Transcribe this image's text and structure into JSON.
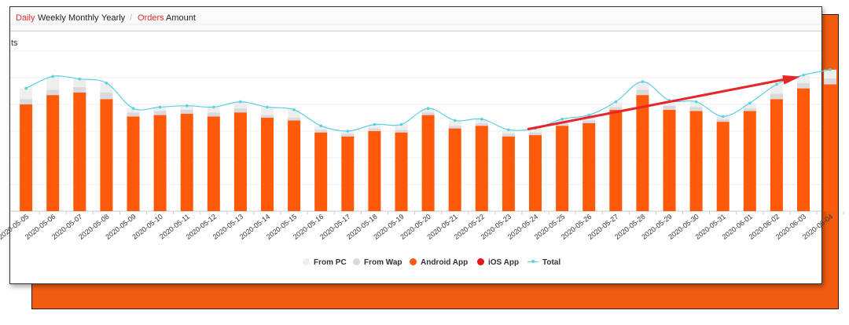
{
  "toolbar": {
    "period_tabs": [
      "Daily",
      "Weekly",
      "Monthly",
      "Yearly"
    ],
    "separator": "/",
    "metric_tabs": [
      "Orders",
      "Amount"
    ],
    "active_period": "Daily",
    "active_metric": "Orders"
  },
  "cut_title": "ts",
  "colors": {
    "from_pc": "#eeeeee",
    "from_wap": "#d9d9de",
    "android": "#ff5a0a",
    "ios": "#e8141c",
    "total": "#5ad0e2",
    "arrow": "#e8252a"
  },
  "chart_data": {
    "type": "bar",
    "stacked": true,
    "categories": [
      "2020-05-05",
      "2020-05-06",
      "2020-05-07",
      "2020-05-08",
      "2020-05-09",
      "2020-05-10",
      "2020-05-11",
      "2020-05-12",
      "2020-05-13",
      "2020-05-14",
      "2020-05-15",
      "2020-05-16",
      "2020-05-17",
      "2020-05-18",
      "2020-05-19",
      "2020-05-20",
      "2020-05-21",
      "2020-05-22",
      "2020-05-23",
      "2020-05-24",
      "2020-05-25",
      "2020-05-26",
      "2020-05-27",
      "2020-05-28",
      "2020-05-29",
      "2020-05-30",
      "2020-05-31",
      "2020-06-01",
      "2020-06-02",
      "2020-06-03",
      "2020-06-04"
    ],
    "series": [
      {
        "name": "From PC",
        "values": [
          8,
          10,
          6,
          7,
          3,
          3,
          3,
          4,
          5,
          6,
          6,
          3,
          2,
          3,
          4,
          3,
          4,
          3,
          3,
          3,
          3,
          4,
          4,
          6,
          4,
          4,
          2,
          4,
          7,
          6,
          7
        ]
      },
      {
        "name": "From Wap",
        "values": [
          4,
          4,
          4,
          5,
          3,
          3,
          3,
          3,
          3,
          2,
          2,
          2,
          2,
          2,
          2,
          2,
          2,
          2,
          2,
          2,
          2,
          2,
          2,
          4,
          3,
          3,
          2,
          2,
          4,
          4,
          4
        ]
      },
      {
        "name": "Android App",
        "values": [
          80,
          87,
          89,
          84,
          71,
          72,
          73,
          71,
          74,
          70,
          68,
          59,
          56,
          60,
          59,
          72,
          62,
          64,
          56,
          57,
          64,
          66,
          76,
          87,
          76,
          75,
          67,
          75,
          84,
          92,
          95
        ]
      },
      {
        "name": "iOS App",
        "values": [
          0,
          0,
          0,
          0,
          0,
          0,
          0,
          0,
          0,
          0,
          0,
          0,
          0,
          0,
          0,
          0,
          0,
          0,
          0,
          0,
          0,
          0,
          0,
          0,
          0,
          0,
          0,
          0,
          0,
          0,
          0
        ]
      },
      {
        "name": "Total",
        "values": [
          92,
          101,
          99,
          96,
          77,
          78,
          79,
          78,
          82,
          78,
          76,
          64,
          60,
          65,
          65,
          77,
          68,
          69,
          61,
          62,
          69,
          72,
          82,
          97,
          83,
          82,
          71,
          81,
          95,
          102,
          106
        ]
      }
    ],
    "ylim": [
      0,
      140
    ],
    "grid": true,
    "legend": "bottom",
    "annotation": {
      "type": "arrow",
      "from_category": "2020-05-24",
      "to_category": "2020-06-03"
    }
  }
}
